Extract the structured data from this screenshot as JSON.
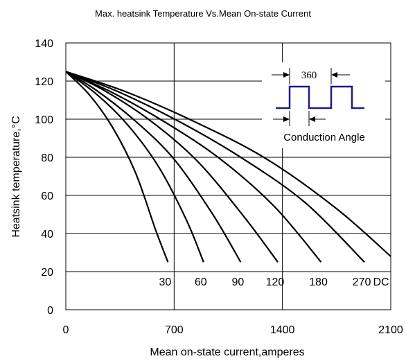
{
  "chart_data": {
    "type": "line",
    "title": "Max. heatsink Temperature Vs.Mean On-state Current",
    "xlabel": "Mean on-state current,amperes",
    "ylabel": "Heatsink temperature,°C",
    "xlim": [
      0,
      2100
    ],
    "ylim": [
      0,
      140
    ],
    "x_ticks": [
      "0",
      "700",
      "1400",
      "2100"
    ],
    "y_ticks": [
      "0",
      "20",
      "40",
      "60",
      "80",
      "100",
      "120",
      "140"
    ],
    "grid": true,
    "series": [
      {
        "name": "30",
        "x": [
          0,
          150,
          300,
          450,
          580,
          660
        ],
        "y": [
          125,
          113,
          96,
          72,
          42,
          25
        ]
      },
      {
        "name": "60",
        "x": [
          0,
          200,
          400,
          600,
          780,
          890
        ],
        "y": [
          125,
          113,
          97,
          75,
          47,
          25
        ]
      },
      {
        "name": "90",
        "x": [
          0,
          200,
          450,
          700,
          950,
          1130
        ],
        "y": [
          125,
          115,
          99,
          79,
          50,
          25
        ]
      },
      {
        "name": "120",
        "x": [
          0,
          250,
          550,
          850,
          1150,
          1370
        ],
        "y": [
          125,
          115,
          99,
          78,
          49,
          25
        ]
      },
      {
        "name": "180",
        "x": [
          0,
          300,
          650,
          1000,
          1350,
          1650
        ],
        "y": [
          125,
          114,
          98,
          79,
          54,
          25
        ]
      },
      {
        "name": "270",
        "x": [
          0,
          350,
          750,
          1150,
          1550,
          1930
        ],
        "y": [
          125,
          114,
          98,
          79,
          56,
          25
        ]
      },
      {
        "name": "DC",
        "x": [
          0,
          400,
          850,
          1300,
          1750,
          2100
        ],
        "y": [
          125,
          114,
          98,
          79,
          53,
          28
        ]
      }
    ],
    "curve_labels": [
      "30",
      "60",
      "90",
      "120",
      "180",
      "270",
      "DC"
    ],
    "inset": {
      "period_label": "360",
      "caption": "Conduction Angle"
    }
  }
}
